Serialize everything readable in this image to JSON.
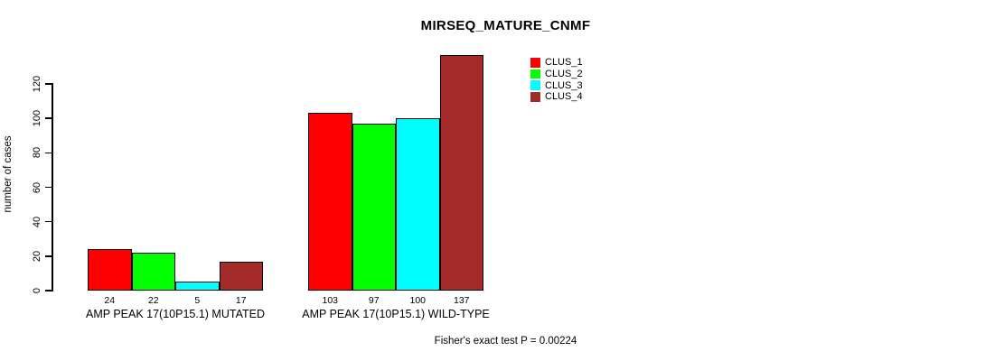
{
  "figure": {
    "background": "#FFFFFF",
    "text_color": "#000000",
    "axis_color": "#000000"
  },
  "chart_data": {
    "type": "bar",
    "title": "MIRSEQ_MATURE_CNMF",
    "ylabel": "number of cases",
    "xlabel": "",
    "categories": [
      "AMP PEAK 17(10P15.1) MUTATED",
      "AMP PEAK 17(10P15.1) WILD-TYPE"
    ],
    "series": [
      {
        "name": "CLUS_1",
        "color": "#FF0000",
        "values": [
          24,
          103
        ]
      },
      {
        "name": "CLUS_2",
        "color": "#00FF00",
        "values": [
          22,
          97
        ]
      },
      {
        "name": "CLUS_3",
        "color": "#00FFFF",
        "values": [
          5,
          100
        ]
      },
      {
        "name": "CLUS_4",
        "color": "#A52A2A",
        "values": [
          17,
          137
        ]
      }
    ],
    "bar_value_labels": true,
    "yticks": [
      0,
      20,
      40,
      60,
      80,
      100,
      120
    ],
    "ylim": [
      0,
      120
    ],
    "grid": false,
    "legend": {
      "position": "top-right",
      "entries": [
        {
          "label": "CLUS_1",
          "color": "#FF0000"
        },
        {
          "label": "CLUS_2",
          "color": "#00FF00"
        },
        {
          "label": "CLUS_3",
          "color": "#00FFFF"
        },
        {
          "label": "CLUS_4",
          "color": "#A52A2A"
        }
      ]
    },
    "annotation": "Fisher's exact test P = 0.00224"
  }
}
